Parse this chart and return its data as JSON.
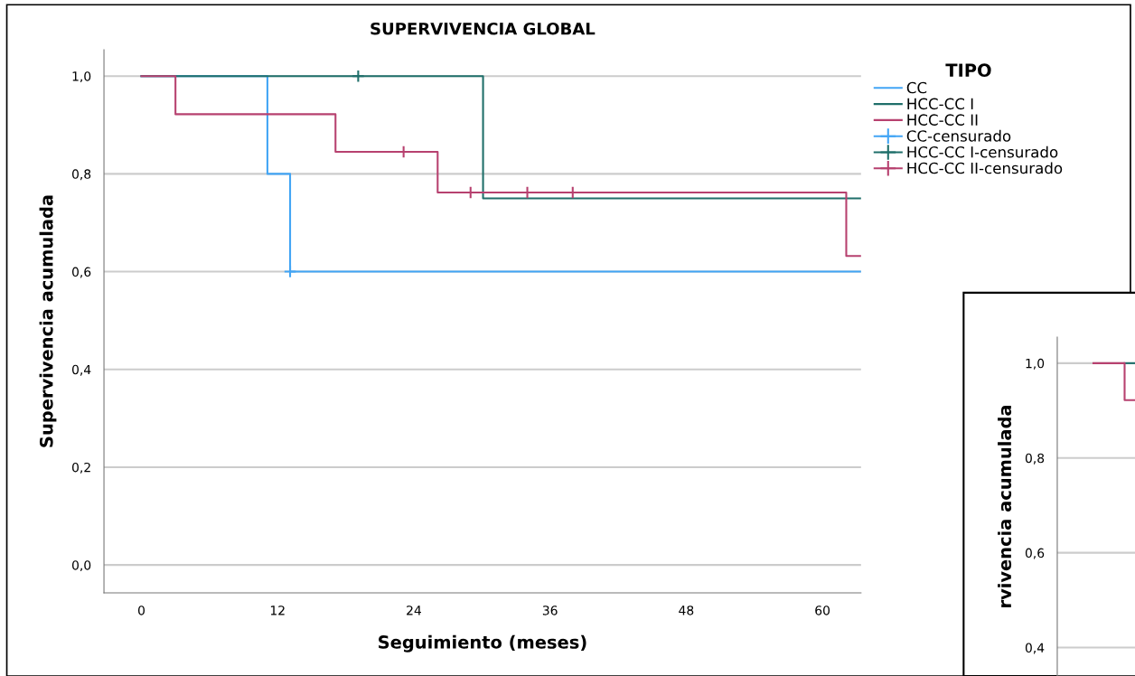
{
  "chart_data": [
    {
      "type": "step",
      "title": "SUPERVIVENCIA GLOBAL",
      "xlabel": "Seguimiento (meses)",
      "ylabel": "Supervivencia acumulada",
      "legend_title": "TIPO",
      "legend": "top right",
      "grid": "y",
      "xlim": [
        -3.3,
        63.4
      ],
      "xticks": [
        0,
        12,
        24,
        36,
        48,
        60
      ],
      "ylim": [
        -0.057,
        1.054
      ],
      "yticks": [
        {
          "value": 0.0,
          "label": "0,0"
        },
        {
          "value": 0.2,
          "label": "0,2"
        },
        {
          "value": 0.4,
          "label": "0,4"
        },
        {
          "value": 0.6,
          "label": "0,6"
        },
        {
          "value": 0.8,
          "label": "0,8"
        },
        {
          "value": 1.0,
          "label": "1,0"
        }
      ],
      "series": [
        {
          "name": "CC",
          "type": "step",
          "color": "#42a5f5",
          "x": [
            0,
            11.1,
            13.1,
            63.4
          ],
          "values": [
            1.0,
            0.8,
            0.6,
            0.6
          ]
        },
        {
          "name": "HCC-CC I",
          "type": "step",
          "color": "#1f6f6a",
          "x": [
            0,
            30.1,
            63.4
          ],
          "values": [
            1.0,
            0.75,
            0.75
          ]
        },
        {
          "name": "HCC-CC II",
          "type": "step",
          "color": "#b7416f",
          "x": [
            0,
            3.0,
            17.1,
            26.1,
            62.1,
            63.4
          ],
          "values": [
            1.0,
            0.922,
            0.845,
            0.762,
            0.632,
            0.632
          ]
        },
        {
          "name": "CC-censurado",
          "type": "scatter",
          "marker": "cross",
          "color": "#42a5f5",
          "x": [
            13.1
          ],
          "values": [
            0.6
          ]
        },
        {
          "name": "HCC-CC I-censurado",
          "type": "scatter",
          "marker": "cross",
          "color": "#1f6f6a",
          "x": [
            19.1
          ],
          "values": [
            1.0
          ]
        },
        {
          "name": "HCC-CC II-censurado",
          "type": "scatter",
          "marker": "cross",
          "color": "#b7416f",
          "x": [
            23.1,
            29.0,
            34.0,
            38.0
          ],
          "values": [
            0.845,
            0.762,
            0.762,
            0.762
          ]
        }
      ]
    },
    {
      "type": "step",
      "ylabel": "rvivencia acumulada",
      "grid": "y",
      "tick_labels": "y",
      "categories": [
        null,
        null,
        null,
        null,
        null
      ],
      "ylim": [
        0.34,
        1.055
      ],
      "yticks": [
        {
          "value": 0.4,
          "label": "0,4"
        },
        {
          "value": 0.6,
          "label": "0,6"
        },
        {
          "value": 0.8,
          "label": "0,8"
        },
        {
          "value": 1.0,
          "label": "1,0"
        }
      ],
      "series": [
        {
          "color": "#1f6f6a",
          "values": [
            null,
            null,
            null,
            1.0,
            1.0
          ]
        },
        {
          "color": "#b7416f",
          "values": [
            1.0,
            1.0,
            1.0,
            0.922,
            0.922
          ]
        }
      ]
    }
  ]
}
